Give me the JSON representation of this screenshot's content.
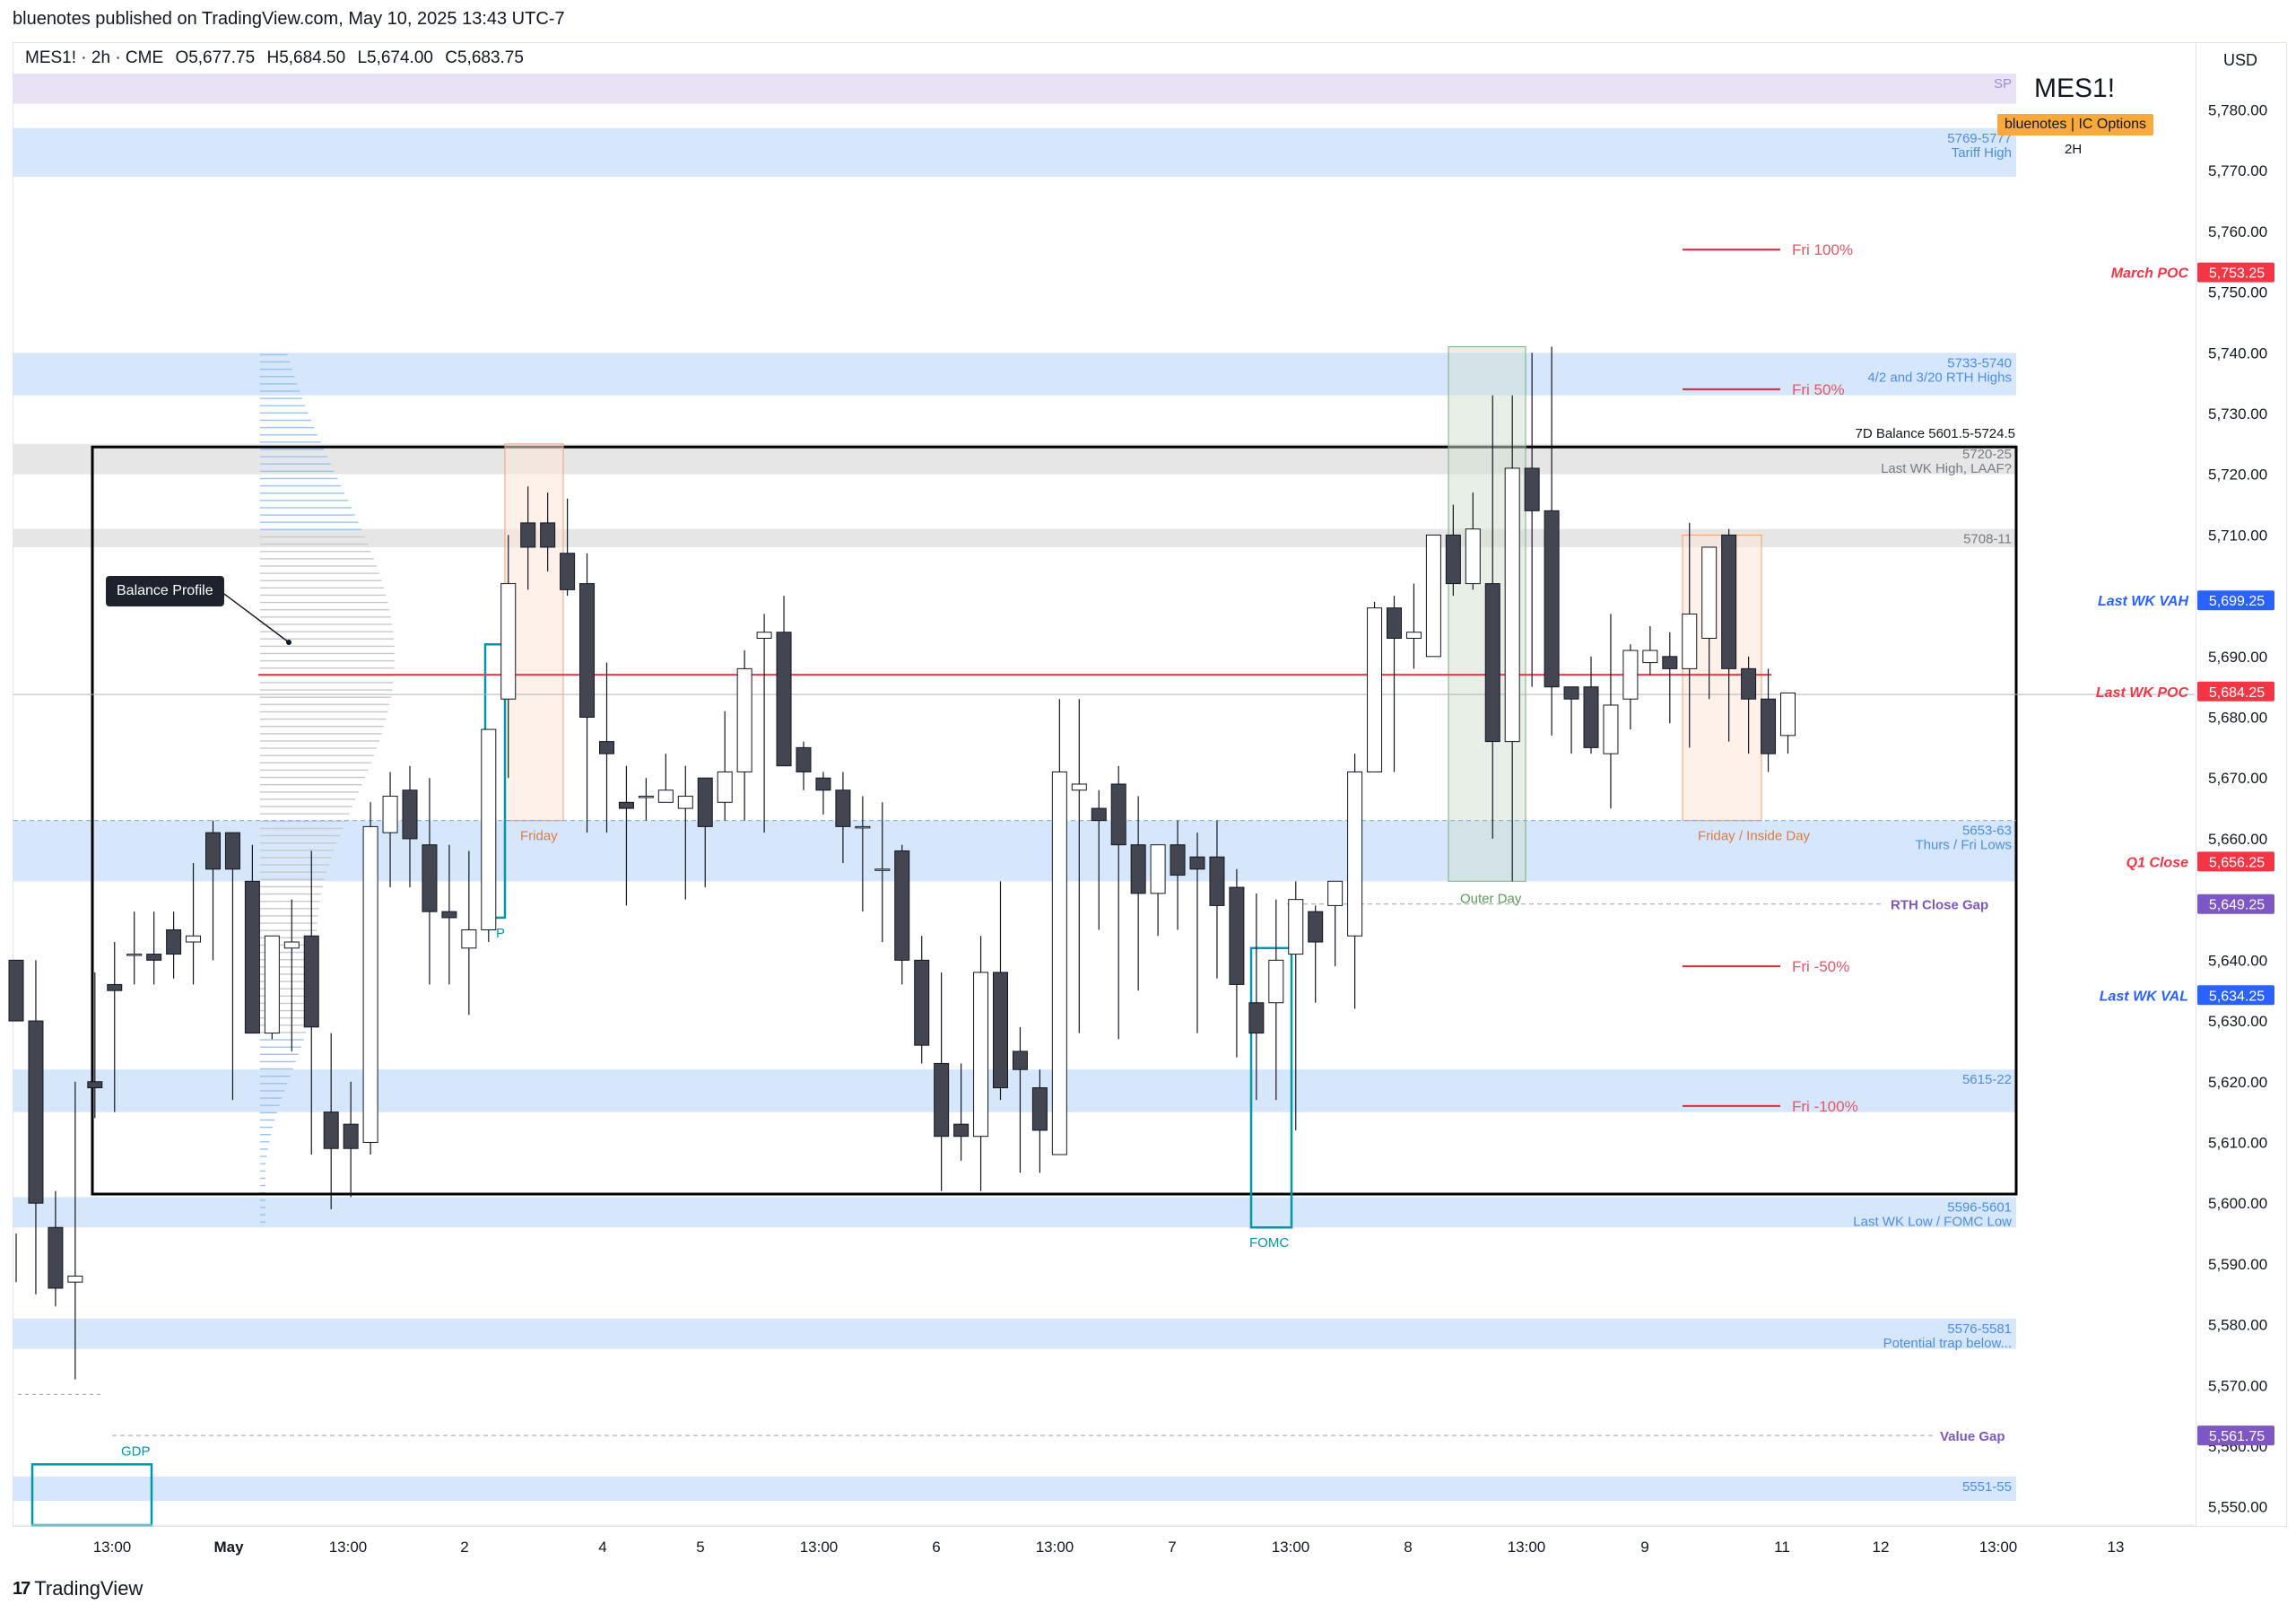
{
  "header": {
    "published": "bluenotes published on TradingView.com, May 10, 2025 13:43 UTC-7"
  },
  "ohlc": {
    "symbol": "MES1! · 2h · CME",
    "open": "O5,677.75",
    "high": "H5,684.50",
    "low": "L5,674.00",
    "close": "C5,683.75"
  },
  "currency": "USD",
  "brand": {
    "title": "MES1!",
    "badge": "bluenotes | IC Options",
    "timeframe": "2H"
  },
  "footer": {
    "logo_text": "TradingView"
  },
  "balance_tag": "Balance Profile",
  "colors": {
    "up": "#ffffff",
    "down": "#434651",
    "wick": "#131722",
    "zone": "#cfe2fb",
    "zone_text": "#4f8ee0",
    "grey_zone": "#e4e4e4",
    "purple_zone": "#e8e1f5",
    "poc_line": "#f23645",
    "box": "#000000",
    "orange_box": "#f6c9a8",
    "green_box": "#a9c9a8",
    "teal": "#0097a7",
    "vah": "#2962ff",
    "purple": "#7e57c2"
  },
  "chart_data": {
    "type": "candlestick",
    "timeframe": "2h",
    "x_axis_labels": [
      "13:00",
      "May",
      "13:00",
      "2",
      "4",
      "5",
      "13:00",
      "6",
      "13:00",
      "7",
      "13:00",
      "8",
      "13:00",
      "9",
      "11",
      "12",
      "13:00",
      "13"
    ],
    "y_ticks": [
      5550,
      5560,
      5570,
      5580,
      5590,
      5600,
      5610,
      5620,
      5630,
      5640,
      5650,
      5660,
      5670,
      5680,
      5690,
      5700,
      5710,
      5720,
      5730,
      5740,
      5750,
      5760,
      5770,
      5780
    ],
    "ylim": [
      5547,
      5791
    ],
    "candles": [
      [
        5640,
        5595,
        5630,
        5587
      ],
      [
        5630,
        5640,
        5600,
        5585
      ],
      [
        5596,
        5602,
        5586,
        5583
      ],
      [
        5587,
        5620,
        5588,
        5571
      ],
      [
        5620,
        5638,
        5619,
        5614
      ],
      [
        5636,
        5643,
        5635,
        5615
      ],
      [
        5641,
        5648,
        5641,
        5636
      ],
      [
        5641,
        5648,
        5640,
        5636
      ],
      [
        5645,
        5648,
        5641,
        5637
      ],
      [
        5643,
        5656,
        5644,
        5636
      ],
      [
        5661,
        5663,
        5655,
        5640
      ],
      [
        5661,
        5661,
        5655,
        5617
      ],
      [
        5653,
        5659,
        5628,
        5628
      ],
      [
        5628,
        5640,
        5644,
        5627
      ],
      [
        5642,
        5650,
        5643,
        5625
      ],
      [
        5644,
        5658,
        5629,
        5608
      ],
      [
        5615,
        5628,
        5609,
        5599
      ],
      [
        5613,
        5620,
        5609,
        5601
      ],
      [
        5610,
        5666,
        5662,
        5608
      ],
      [
        5661,
        5671,
        5667,
        5652
      ],
      [
        5668,
        5672,
        5660,
        5652
      ],
      [
        5659,
        5670,
        5648,
        5636
      ],
      [
        5648,
        5659,
        5647,
        5636
      ],
      [
        5642,
        5658,
        5645,
        5631
      ],
      [
        5645,
        5675,
        5678,
        5643
      ],
      [
        5683,
        5710,
        5702,
        5670
      ],
      [
        5712,
        5718,
        5708,
        5701
      ],
      [
        5712,
        5717,
        5708,
        5704
      ],
      [
        5707,
        5716,
        5701,
        5700
      ],
      [
        5702,
        5707,
        5680,
        5661
      ],
      [
        5676,
        5689,
        5674,
        5661
      ],
      [
        5666,
        5672,
        5665,
        5649
      ],
      [
        5667,
        5670,
        5667,
        5663
      ],
      [
        5666,
        5674,
        5668,
        5666
      ],
      [
        5665,
        5672,
        5667,
        5650
      ],
      [
        5670,
        5670,
        5662,
        5652
      ],
      [
        5666,
        5681,
        5671,
        5663
      ],
      [
        5671,
        5691,
        5688,
        5663
      ],
      [
        5693,
        5697,
        5694,
        5661
      ],
      [
        5694,
        5700,
        5672,
        5672
      ],
      [
        5675,
        5676,
        5671,
        5668
      ],
      [
        5670,
        5671,
        5668,
        5664
      ],
      [
        5668,
        5671,
        5662,
        5656
      ],
      [
        5662,
        5667,
        5662,
        5648
      ],
      [
        5655,
        5666,
        5655,
        5643
      ],
      [
        5658,
        5659,
        5640,
        5636
      ],
      [
        5640,
        5644,
        5626,
        5623
      ],
      [
        5623,
        5638,
        5611,
        5602
      ],
      [
        5613,
        5623,
        5611,
        5607
      ],
      [
        5611,
        5644,
        5638,
        5602
      ],
      [
        5638,
        5653,
        5619,
        5617
      ],
      [
        5625,
        5629,
        5622,
        5605
      ],
      [
        5619,
        5622,
        5612,
        5605
      ],
      [
        5608,
        5683,
        5671,
        5608
      ],
      [
        5668,
        5683,
        5669,
        5628
      ],
      [
        5665,
        5668,
        5663,
        5645
      ],
      [
        5669,
        5672,
        5659,
        5627
      ],
      [
        5659,
        5667,
        5651,
        5635
      ],
      [
        5651,
        5658,
        5659,
        5644
      ],
      [
        5659,
        5663,
        5654,
        5645
      ],
      [
        5657,
        5661,
        5655,
        5628
      ],
      [
        5657,
        5663,
        5649,
        5637
      ],
      [
        5652,
        5655,
        5636,
        5624
      ],
      [
        5633,
        5651,
        5628,
        5617
      ],
      [
        5633,
        5650,
        5640,
        5617
      ],
      [
        5641,
        5653,
        5650,
        5612
      ],
      [
        5648,
        5649,
        5643,
        5633
      ],
      [
        5649,
        5651,
        5653,
        5639
      ],
      [
        5644,
        5674,
        5671,
        5632
      ],
      [
        5671,
        5699,
        5698,
        5683
      ],
      [
        5698,
        5700,
        5693,
        5671
      ],
      [
        5693,
        5702,
        5694,
        5688
      ],
      [
        5690,
        5707,
        5710,
        5690
      ],
      [
        5710,
        5715,
        5702,
        5700
      ],
      [
        5702,
        5717,
        5711,
        5701
      ],
      [
        5702,
        5733,
        5676,
        5660
      ],
      [
        5676,
        5733,
        5721,
        5653
      ],
      [
        5721,
        5740,
        5714,
        5685
      ],
      [
        5714,
        5741,
        5685,
        5677
      ],
      [
        5685,
        5684,
        5683,
        5674
      ],
      [
        5685,
        5690,
        5675,
        5674
      ],
      [
        5674,
        5697,
        5682,
        5665
      ],
      [
        5683,
        5692,
        5691,
        5678
      ],
      [
        5689,
        5695,
        5691,
        5687
      ],
      [
        5690,
        5694,
        5688,
        5679
      ],
      [
        5688,
        5712,
        5697,
        5675
      ],
      [
        5693,
        5706,
        5708,
        5683
      ],
      [
        5710,
        5711,
        5688,
        5676
      ],
      [
        5688,
        5690,
        5683,
        5674
      ],
      [
        5683,
        5688,
        5674,
        5671
      ],
      [
        5677,
        5684,
        5684,
        5674
      ]
    ],
    "candle_note": "each candle = [open, high, close, low]",
    "horizontal_zones": [
      {
        "low": 5781,
        "high": 5786,
        "label": "SP",
        "kind": "purple"
      },
      {
        "low": 5769,
        "high": 5777,
        "label": "5769-5777",
        "sub": "Tariff High",
        "kind": "blue"
      },
      {
        "low": 5733,
        "high": 5740,
        "label": "5733-5740",
        "sub": "4/2 and 3/20 RTH Highs",
        "kind": "blue"
      },
      {
        "low": 5720,
        "high": 5725,
        "label": "5720-25",
        "sub": "Last WK High, LAAF?",
        "kind": "grey"
      },
      {
        "low": 5708,
        "high": 5711,
        "label": "5708-11",
        "sub": "",
        "kind": "grey"
      },
      {
        "low": 5653,
        "high": 5663,
        "label": "5653-63",
        "sub": "Thurs / Fri Lows",
        "kind": "blue"
      },
      {
        "low": 5615,
        "high": 5622,
        "label": "5615-22",
        "sub": "",
        "kind": "blue"
      },
      {
        "low": 5596,
        "high": 5601,
        "label": "5596-5601",
        "sub": "Last WK Low / FOMC Low",
        "kind": "blue"
      },
      {
        "low": 5576,
        "high": 5581,
        "label": "5576-5581",
        "sub": "Potential trap below...",
        "kind": "blue"
      },
      {
        "low": 5551,
        "high": 5555,
        "label": "5551-55",
        "sub": "",
        "kind": "blue"
      }
    ],
    "fri_levels": [
      {
        "price": 5757,
        "label": "Fri 100%"
      },
      {
        "price": 5734,
        "label": "Fri 50%"
      },
      {
        "price": 5639,
        "label": "Fri -50%"
      },
      {
        "price": 5616,
        "label": "Fri -100%"
      }
    ],
    "annotations": {
      "balance": "7D Balance 5601.5-5724.5",
      "friday": "Friday",
      "friday_inside": "Friday / Inside Day",
      "outer_day": "Outer Day",
      "fomc": "FOMC",
      "gdp": "GDP",
      "rth_gap": "RTH Close Gap",
      "value_gap": "Value Gap",
      "cpi_partial": "P"
    },
    "price_labels": [
      {
        "name": "March POC",
        "value": "5,753.25",
        "price": 5753.25,
        "color": "#f23645"
      },
      {
        "name": "Last WK VAH",
        "value": "5,699.25",
        "price": 5699.25,
        "color": "#2962ff"
      },
      {
        "name": "Last WK POC",
        "value": "5,684.25",
        "price": 5684.25,
        "color": "#f23645"
      },
      {
        "name": "Q1 Close",
        "value": "5,656.25",
        "price": 5656.25,
        "color": "#f23645"
      },
      {
        "name": "RTH Close Gap",
        "value": "5,649.25",
        "price": 5649.25,
        "color": "#7e57c2"
      },
      {
        "name": "Last WK VAL",
        "value": "5,634.25",
        "price": 5634.25,
        "color": "#2962ff"
      },
      {
        "name": "Value Gap",
        "value": "5,561.75",
        "price": 5561.75,
        "color": "#7e57c2"
      }
    ],
    "poc_price": 5687,
    "last_price": 5683.75
  }
}
